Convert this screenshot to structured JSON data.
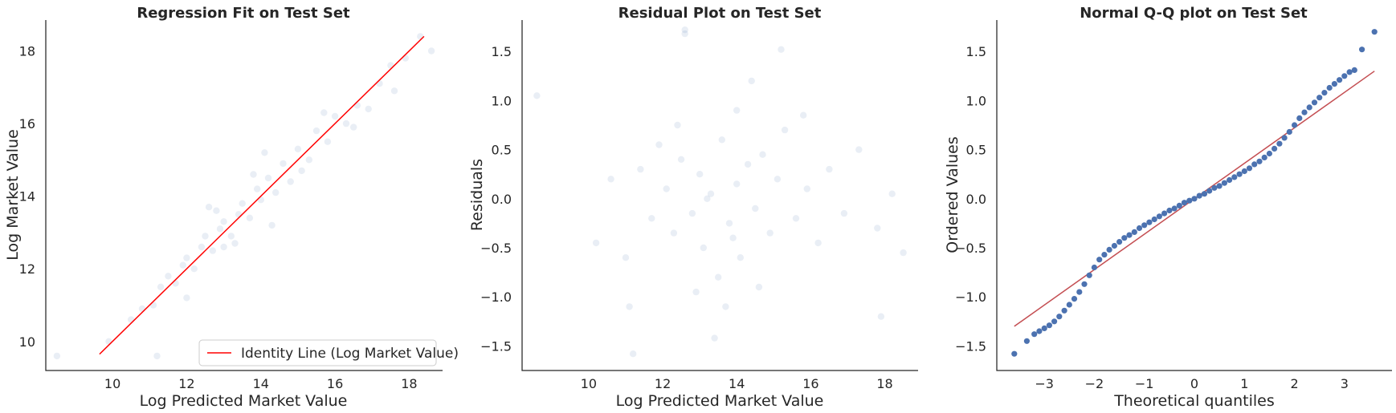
{
  "chart_data": [
    {
      "type": "scatter",
      "title": "Regression Fit on Test Set",
      "xlabel": "Log Predicted Market Value",
      "ylabel": "Log Market Value",
      "xlim": [
        8.2,
        18.9
      ],
      "ylim": [
        9.2,
        18.85
      ],
      "xticks": [
        10,
        12,
        14,
        16,
        18
      ],
      "yticks": [
        10,
        12,
        14,
        16,
        18
      ],
      "grid": false,
      "legend_position": "lower-right",
      "series": [
        {
          "name": "Identity Line (Log Market Value)",
          "kind": "line",
          "color": "#ff0000",
          "x": [
            9.65,
            18.4
          ],
          "y": [
            9.65,
            18.4
          ]
        },
        {
          "kind": "points",
          "color": "#4c72b0",
          "alpha": 0.12,
          "x": [
            8.5,
            9.9,
            10.5,
            10.8,
            11.1,
            11.3,
            11.5,
            11.7,
            11.9,
            12.0,
            12.2,
            12.4,
            12.5,
            12.7,
            12.9,
            13.0,
            13.2,
            13.4,
            13.5,
            13.7,
            13.9,
            14.0,
            14.2,
            14.4,
            14.6,
            14.8,
            15.0,
            15.3,
            15.5,
            15.8,
            16.0,
            16.3,
            16.6,
            16.9,
            17.2,
            17.5,
            17.9,
            18.3,
            18.6,
            11.2,
            12.0,
            12.8,
            13.3,
            13.8,
            14.3,
            15.1,
            15.7,
            16.5,
            17.6,
            13.0,
            12.6,
            14.1
          ],
          "y": [
            9.6,
            10.0,
            10.6,
            10.9,
            11.0,
            11.5,
            11.8,
            11.6,
            12.1,
            12.3,
            12.0,
            12.6,
            12.9,
            12.5,
            13.1,
            13.3,
            12.9,
            13.5,
            13.8,
            13.4,
            14.2,
            13.9,
            14.5,
            14.1,
            14.9,
            14.4,
            15.3,
            15.0,
            15.8,
            15.5,
            16.2,
            16.0,
            16.5,
            16.4,
            17.1,
            17.6,
            17.8,
            18.4,
            18.0,
            9.6,
            11.2,
            13.6,
            12.7,
            14.6,
            13.2,
            14.7,
            16.3,
            15.9,
            16.9,
            12.6,
            13.7,
            15.2
          ]
        }
      ]
    },
    {
      "type": "scatter",
      "title": "Residual Plot on Test Set",
      "xlabel": "Log Predicted Market Value",
      "ylabel": "Residuals",
      "xlim": [
        8.2,
        18.9
      ],
      "ylim": [
        -1.75,
        1.82
      ],
      "xticks": [
        10,
        12,
        14,
        16,
        18
      ],
      "yticks": [
        -1.5,
        -1.0,
        -0.5,
        0.0,
        0.5,
        1.0,
        1.5
      ],
      "yticklabels": [
        "−1.5",
        "−1.0",
        "−0.5",
        "0.0",
        "0.5",
        "1.0",
        "1.5"
      ],
      "grid": false,
      "series": [
        {
          "kind": "points",
          "color": "#4c72b0",
          "alpha": 0.12,
          "x": [
            8.6,
            10.2,
            10.6,
            11.0,
            11.2,
            11.4,
            11.7,
            11.9,
            12.1,
            12.3,
            12.5,
            12.6,
            12.8,
            13.0,
            13.1,
            13.3,
            13.5,
            13.6,
            13.8,
            14.0,
            14.1,
            14.3,
            14.5,
            14.7,
            14.9,
            15.1,
            15.3,
            15.6,
            15.9,
            16.2,
            16.5,
            16.9,
            17.3,
            17.8,
            18.2,
            18.5,
            12.6,
            13.4,
            14.4,
            15.2,
            12.9,
            13.7,
            14.0,
            11.1,
            13.2,
            15.8,
            17.9,
            13.9,
            14.6,
            12.4
          ],
          "y": [
            1.05,
            -0.45,
            0.2,
            -0.6,
            -1.58,
            0.3,
            -0.2,
            0.55,
            0.1,
            -0.35,
            0.4,
            1.72,
            -0.15,
            0.25,
            -0.5,
            0.05,
            -0.8,
            0.6,
            -0.25,
            0.15,
            -0.6,
            0.35,
            -0.1,
            0.45,
            -0.35,
            0.2,
            0.7,
            -0.2,
            0.1,
            -0.45,
            0.3,
            -0.15,
            0.5,
            -0.3,
            0.05,
            -0.55,
            1.68,
            -1.42,
            1.2,
            1.52,
            -0.95,
            -1.1,
            0.9,
            -1.1,
            0.0,
            0.85,
            -1.2,
            -0.4,
            -0.9,
            0.75
          ]
        }
      ]
    },
    {
      "type": "scatter",
      "title": "Normal Q-Q plot on Test Set",
      "xlabel": "Theoretical quantiles",
      "ylabel": "Ordered Values",
      "xlim": [
        -3.95,
        3.95
      ],
      "ylim": [
        -1.75,
        1.82
      ],
      "xticks": [
        -3,
        -2,
        -1,
        0,
        1,
        2,
        3
      ],
      "xticklabels": [
        "−3",
        "−2",
        "−1",
        "0",
        "1",
        "2",
        "3"
      ],
      "yticks": [
        -1.5,
        -1.0,
        -0.5,
        0.0,
        0.5,
        1.0,
        1.5
      ],
      "yticklabels": [
        "−1.5",
        "−1.0",
        "−0.5",
        "0.0",
        "0.5",
        "1.0",
        "1.5"
      ],
      "grid": false,
      "series": [
        {
          "kind": "line",
          "color": "#c44e52",
          "x": [
            -3.6,
            3.6
          ],
          "y": [
            -1.3,
            1.3
          ]
        },
        {
          "kind": "points",
          "color": "#4c72b0",
          "alpha": 1.0,
          "x": [
            -3.6,
            -3.35,
            -3.2,
            -3.1,
            -3.0,
            -2.9,
            -2.8,
            -2.7,
            -2.6,
            -2.5,
            -2.4,
            -2.3,
            -2.2,
            -2.1,
            -2.0,
            -1.9,
            -1.8,
            -1.7,
            -1.6,
            -1.5,
            -1.4,
            -1.3,
            -1.2,
            -1.1,
            -1.0,
            -0.9,
            -0.8,
            -0.7,
            -0.6,
            -0.5,
            -0.4,
            -0.3,
            -0.2,
            -0.1,
            0.0,
            0.1,
            0.2,
            0.3,
            0.4,
            0.5,
            0.6,
            0.7,
            0.8,
            0.9,
            1.0,
            1.1,
            1.2,
            1.3,
            1.4,
            1.5,
            1.6,
            1.7,
            1.8,
            1.9,
            2.0,
            2.1,
            2.2,
            2.3,
            2.4,
            2.5,
            2.6,
            2.7,
            2.8,
            2.9,
            3.0,
            3.1,
            3.2,
            3.35,
            3.6
          ],
          "y": [
            -1.58,
            -1.45,
            -1.38,
            -1.35,
            -1.32,
            -1.29,
            -1.25,
            -1.2,
            -1.14,
            -1.08,
            -1.02,
            -0.95,
            -0.87,
            -0.78,
            -0.7,
            -0.62,
            -0.57,
            -0.52,
            -0.48,
            -0.44,
            -0.4,
            -0.37,
            -0.34,
            -0.3,
            -0.27,
            -0.24,
            -0.21,
            -0.18,
            -0.15,
            -0.12,
            -0.1,
            -0.07,
            -0.04,
            -0.02,
            0.0,
            0.03,
            0.05,
            0.08,
            0.11,
            0.13,
            0.16,
            0.19,
            0.22,
            0.25,
            0.28,
            0.31,
            0.35,
            0.38,
            0.42,
            0.46,
            0.51,
            0.56,
            0.62,
            0.68,
            0.75,
            0.82,
            0.88,
            0.93,
            0.98,
            1.03,
            1.08,
            1.13,
            1.17,
            1.21,
            1.25,
            1.29,
            1.31,
            1.52,
            1.7
          ]
        }
      ]
    }
  ]
}
